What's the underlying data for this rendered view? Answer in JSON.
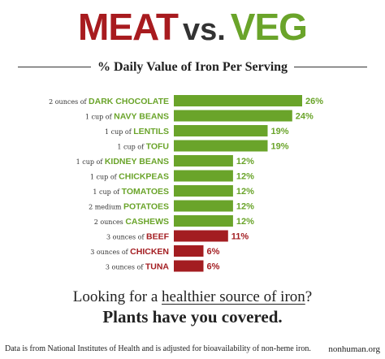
{
  "header": {
    "title_meat": "MEAT",
    "title_vs": "vs.",
    "title_veg": "VEG",
    "subtitle": "% Daily Value of Iron Per Serving"
  },
  "chart_data": {
    "type": "bar",
    "orientation": "horizontal",
    "title": "% Daily Value of Iron Per Serving",
    "categories": [
      {
        "qty": "2 ounces of",
        "food": "DARK CHOCOLATE",
        "value": 26,
        "label": "26%",
        "group": "veg"
      },
      {
        "qty": "1 cup of",
        "food": "NAVY BEANS",
        "value": 24,
        "label": "24%",
        "group": "veg"
      },
      {
        "qty": "1 cup of",
        "food": "LENTILS",
        "value": 19,
        "label": "19%",
        "group": "veg"
      },
      {
        "qty": "1 cup of",
        "food": "TOFU",
        "value": 19,
        "label": "19%",
        "group": "veg"
      },
      {
        "qty": "1 cup of",
        "food": "KIDNEY BEANS",
        "value": 12,
        "label": "12%",
        "group": "veg"
      },
      {
        "qty": "1 cup of",
        "food": "CHICKPEAS",
        "value": 12,
        "label": "12%",
        "group": "veg"
      },
      {
        "qty": "1 cup of",
        "food": "TOMATOES",
        "value": 12,
        "label": "12%",
        "group": "veg"
      },
      {
        "qty": "2 medium",
        "food": "POTATOES",
        "value": 12,
        "label": "12%",
        "group": "veg"
      },
      {
        "qty": "2 ounces",
        "food": "CASHEWS",
        "value": 12,
        "label": "12%",
        "group": "veg"
      },
      {
        "qty": "3 ounces of",
        "food": "BEEF",
        "value": 11,
        "label": "11%",
        "group": "meat"
      },
      {
        "qty": "3 ounces of",
        "food": "CHICKEN",
        "value": 6,
        "label": "6%",
        "group": "meat"
      },
      {
        "qty": "3 ounces of",
        "food": "TUNA",
        "value": 6,
        "label": "6%",
        "group": "meat"
      }
    ],
    "xlim": [
      0,
      26
    ],
    "colors": {
      "veg": "#6aa42a",
      "meat": "#a31d21"
    }
  },
  "tagline": {
    "line1_pre": "Looking for a ",
    "line1_highlight": "healthier source of iron",
    "line1_post": "?",
    "line2": "Plants have you covered."
  },
  "footer": {
    "note": "Data is from National Institutes of Health and is adjusted for bioavailability of non-heme iron.",
    "site": "nonhuman.org"
  }
}
